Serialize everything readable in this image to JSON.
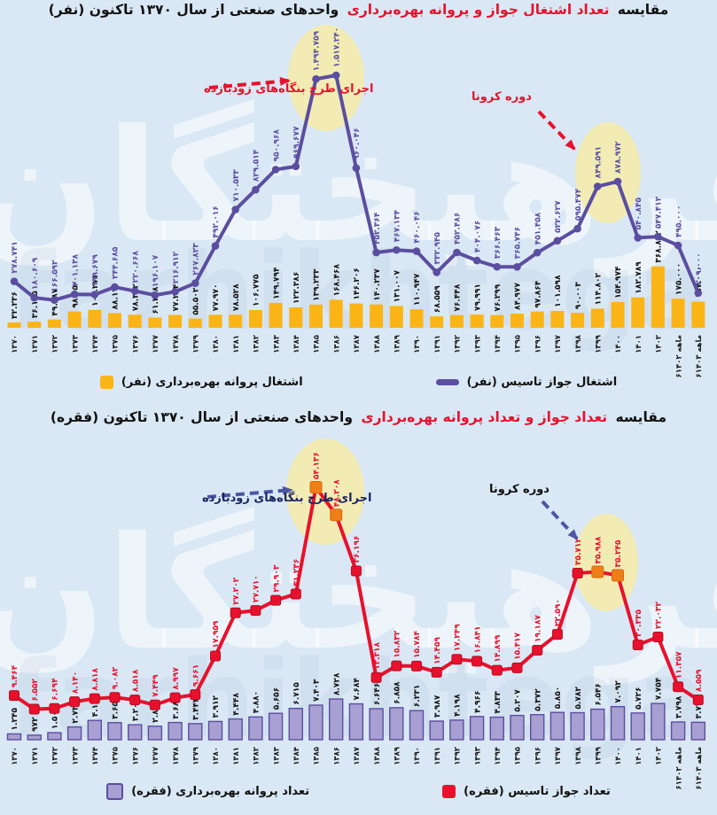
{
  "page": {
    "watermark_text": "فرهیختگان",
    "watermark_latin": "farhikhtegan",
    "background_color": "#d9e8f4"
  },
  "chart_data": [
    {
      "type": "bar+line",
      "title": "مقایسه تعداد اشتغال جواز و پروانه بهره‌برداری واحدهای صنعتی از سال ۱۳۷۰ تاکنون (نفر)",
      "title_parts": {
        "prefix": "مقایسه",
        "highlight": "تعداد اشتغال جواز و پروانه بهره‌برداری",
        "suffix": "واحدهای صنعتی از سال ۱۳۷۰ تاکنون (نفر)"
      },
      "title_highlight_color": "#e8112d",
      "categories": [
        "۱۳۷۰",
        "۱۳۷۱",
        "۱۳۷۲",
        "۱۳۷۳",
        "۱۳۷۴",
        "۱۳۷۵",
        "۱۳۷۶",
        "۱۳۷۷",
        "۱۳۷۸",
        "۱۳۷۹",
        "۱۳۸۰",
        "۱۳۸۱",
        "۱۳۸۲",
        "۱۳۸۳",
        "۱۳۸۴",
        "۱۳۸۵",
        "۱۳۸۶",
        "۱۳۸۷",
        "۱۳۸۸",
        "۱۳۸۹",
        "۱۳۹۰",
        "۱۳۹۱",
        "۱۳۹۲",
        "۱۳۹۳",
        "۱۳۹۴",
        "۱۳۹۵",
        "۱۳۹۶",
        "۱۳۹۷",
        "۱۳۹۸",
        "۱۳۹۹",
        "۱۴۰۰",
        "۱۴۰۱",
        "۱۴۰۲",
        "۶ماهه ۱۴۰۲",
        "۶ماهه ۱۴۰۳"
      ],
      "series": [
        {
          "name": "اشتغال جواز تاسیس (نفر)",
          "type": "line",
          "marker": "circle",
          "color": "#5b4ea0",
          "values": [
            278741,
            180609,
            166592,
            201138,
            199679,
            244685,
            220668,
            196107,
            216912,
            267823,
            492016,
            710533,
            829514,
            950968,
            969677,
            1494759,
            1517240,
            960046,
            452364,
            467134,
            460046,
            332945,
            452486,
            404076,
            366463,
            365746,
            451458,
            522627,
            595474,
            849591,
            878972,
            540845,
            547412,
            495000,
            209000
          ]
        },
        {
          "name": "اشتغال پروانه بهره‌برداری (نفر)",
          "type": "bar",
          "color": "#fbb416",
          "border": null,
          "values": [
            32236,
            36145,
            49987,
            98050,
            107271,
            88170,
            78302,
            61278,
            77254,
            55502,
            77970,
            78528,
            106775,
            149794,
            122386,
            139233,
            168468,
            146206,
            140237,
            131007,
            110947,
            68559,
            76448,
            79991,
            76299,
            84977,
            97864,
            101598,
            90003,
            114802,
            154974,
            182789,
            368882,
            175000,
            157000
          ]
        }
      ],
      "ylim": [
        0,
        1600000
      ],
      "grid": false,
      "legend_position": "bottom",
      "highlighted_indices": [
        15,
        16,
        29,
        30
      ],
      "highlight_marker_color": null,
      "annotations": [
        {
          "text": "اجرای طرح بنگاه‌های زودبازده",
          "color": "#e8112d"
        },
        {
          "text": "دوره کرونا",
          "color": "#e8112d"
        }
      ],
      "legend": [
        {
          "label": "اشتغال جواز تاسیس (نفر)",
          "color": "#5b4ea0",
          "shape": "line",
          "border": null
        },
        {
          "label": "اشتغال پروانه بهره‌برداری (نفر)",
          "color": "#fbb416",
          "shape": "square",
          "border": null
        }
      ]
    },
    {
      "type": "bar+line",
      "title": "مقایسه تعداد جواز و تعداد پروانه بهره‌برداری واحدهای صنعتی از سال ۱۳۷۰ تاکنون (فقره)",
      "title_parts": {
        "prefix": "مقایسه",
        "highlight": "تعداد جواز و تعداد پروانه بهره‌برداری",
        "suffix": "واحدهای صنعتی از سال ۱۳۷۰ تاکنون (فقره)"
      },
      "title_highlight_color": "#e8112d",
      "categories": [
        "۱۳۷۰",
        "۱۳۷۱",
        "۱۳۷۲",
        "۱۳۷۳",
        "۱۳۷۴",
        "۱۳۷۵",
        "۱۳۷۶",
        "۱۳۷۷",
        "۱۳۷۸",
        "۱۳۷۹",
        "۱۳۸۰",
        "۱۳۸۱",
        "۱۳۸۲",
        "۱۳۸۳",
        "۱۳۸۴",
        "۱۳۸۵",
        "۱۳۸۶",
        "۱۳۸۷",
        "۱۳۸۸",
        "۱۳۸۹",
        "۱۳۹۰",
        "۱۳۹۱",
        "۱۳۹۲",
        "۱۳۹۳",
        "۱۳۹۴",
        "۱۳۹۵",
        "۱۳۹۶",
        "۱۳۹۷",
        "۱۳۹۸",
        "۱۳۹۹",
        "۱۴۰۰",
        "۱۴۰۱",
        "۱۴۰۲",
        "۶ماهه ۱۴۰۲",
        "۶ماهه ۱۴۰۳"
      ],
      "series": [
        {
          "name": "تعداد جواز تاسیس (فقره)",
          "type": "line",
          "marker": "square",
          "color": "#e8112d",
          "values": [
            9464,
            6552,
            6694,
            8140,
            8818,
            9082,
            8518,
            7449,
            8997,
            9661,
            17959,
            27202,
            27710,
            29903,
            31236,
            54136,
            48208,
            36196,
            13318,
            15832,
            15784,
            14459,
            17249,
            16841,
            14899,
            15417,
            19187,
            22590,
            35712,
            35988,
            35245,
            20335,
            22032,
            11357,
            8559
          ]
        },
        {
          "name": "تعداد پروانه بهره‌برداری (فقره)",
          "type": "bar",
          "color": "#a89fd2",
          "border": "#5b4ea0",
          "values": [
            1245,
            972,
            1505,
            2739,
            4134,
            3659,
            3201,
            2887,
            3687,
            3444,
            3912,
            4448,
            4880,
            5656,
            6715,
            7403,
            8728,
            7684,
            6646,
            6858,
            6231,
            3987,
            4198,
            4966,
            4833,
            5207,
            5372,
            5850,
            5782,
            6546,
            7092,
            5726,
            7754,
            3798,
            3727
          ]
        }
      ],
      "ylim": [
        0,
        58000
      ],
      "grid": false,
      "legend_position": "bottom",
      "highlighted_indices": [
        15,
        16,
        29,
        30
      ],
      "highlight_marker_color": "#ef7d18",
      "annotations": [
        {
          "text": "اجرای طرح بنگاه‌های زودبازده",
          "color": "#1b2560"
        },
        {
          "text": "دوره کرونا",
          "color": "#111111"
        }
      ],
      "legend": [
        {
          "label": "تعداد جواز تاسیس (فقره)",
          "color": "#e8112d",
          "shape": "square",
          "border": null
        },
        {
          "label": "تعداد پروانه بهره‌برداری (فقره)",
          "color": "#a89fd2",
          "shape": "square",
          "border": "#5b4ea0"
        }
      ]
    }
  ]
}
